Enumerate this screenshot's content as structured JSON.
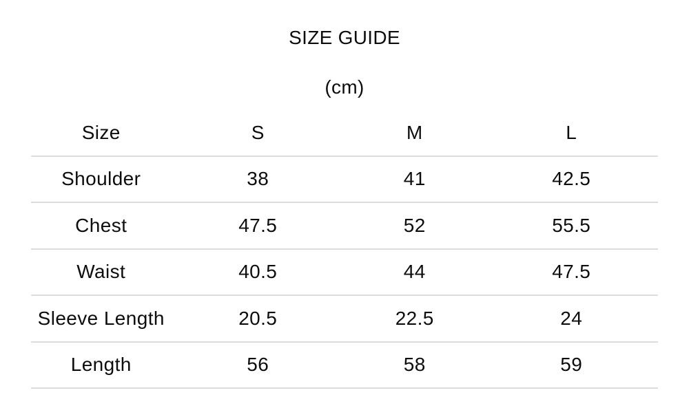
{
  "header": {
    "title": "SIZE GUIDE",
    "unit": "(cm)"
  },
  "table": {
    "columns": [
      "Size",
      "S",
      "M",
      "L"
    ],
    "rows": [
      {
        "label": "Shoulder",
        "values": [
          "38",
          "41",
          "42.5"
        ]
      },
      {
        "label": "Chest",
        "values": [
          "47.5",
          "52",
          "55.5"
        ]
      },
      {
        "label": "Waist",
        "values": [
          "40.5",
          "44",
          "47.5"
        ]
      },
      {
        "label": "Sleeve Length",
        "values": [
          "20.5",
          "22.5",
          "24"
        ]
      },
      {
        "label": "Length",
        "values": [
          "56",
          "58",
          "59"
        ]
      }
    ]
  },
  "chart_data": {
    "type": "table",
    "title": "SIZE GUIDE",
    "unit": "cm",
    "columns": [
      "Size",
      "S",
      "M",
      "L"
    ],
    "rows": [
      [
        "Shoulder",
        38,
        41,
        42.5
      ],
      [
        "Chest",
        47.5,
        52,
        55.5
      ],
      [
        "Waist",
        40.5,
        44,
        47.5
      ],
      [
        "Sleeve Length",
        20.5,
        22.5,
        24
      ],
      [
        "Length",
        56,
        58,
        59
      ]
    ],
    "layout": {
      "grid": "horizontal-dividers-only",
      "text_align": "center"
    }
  },
  "colors": {
    "text": "#0d0d0d",
    "divider": "#dcdcdc",
    "background": "#ffffff"
  }
}
